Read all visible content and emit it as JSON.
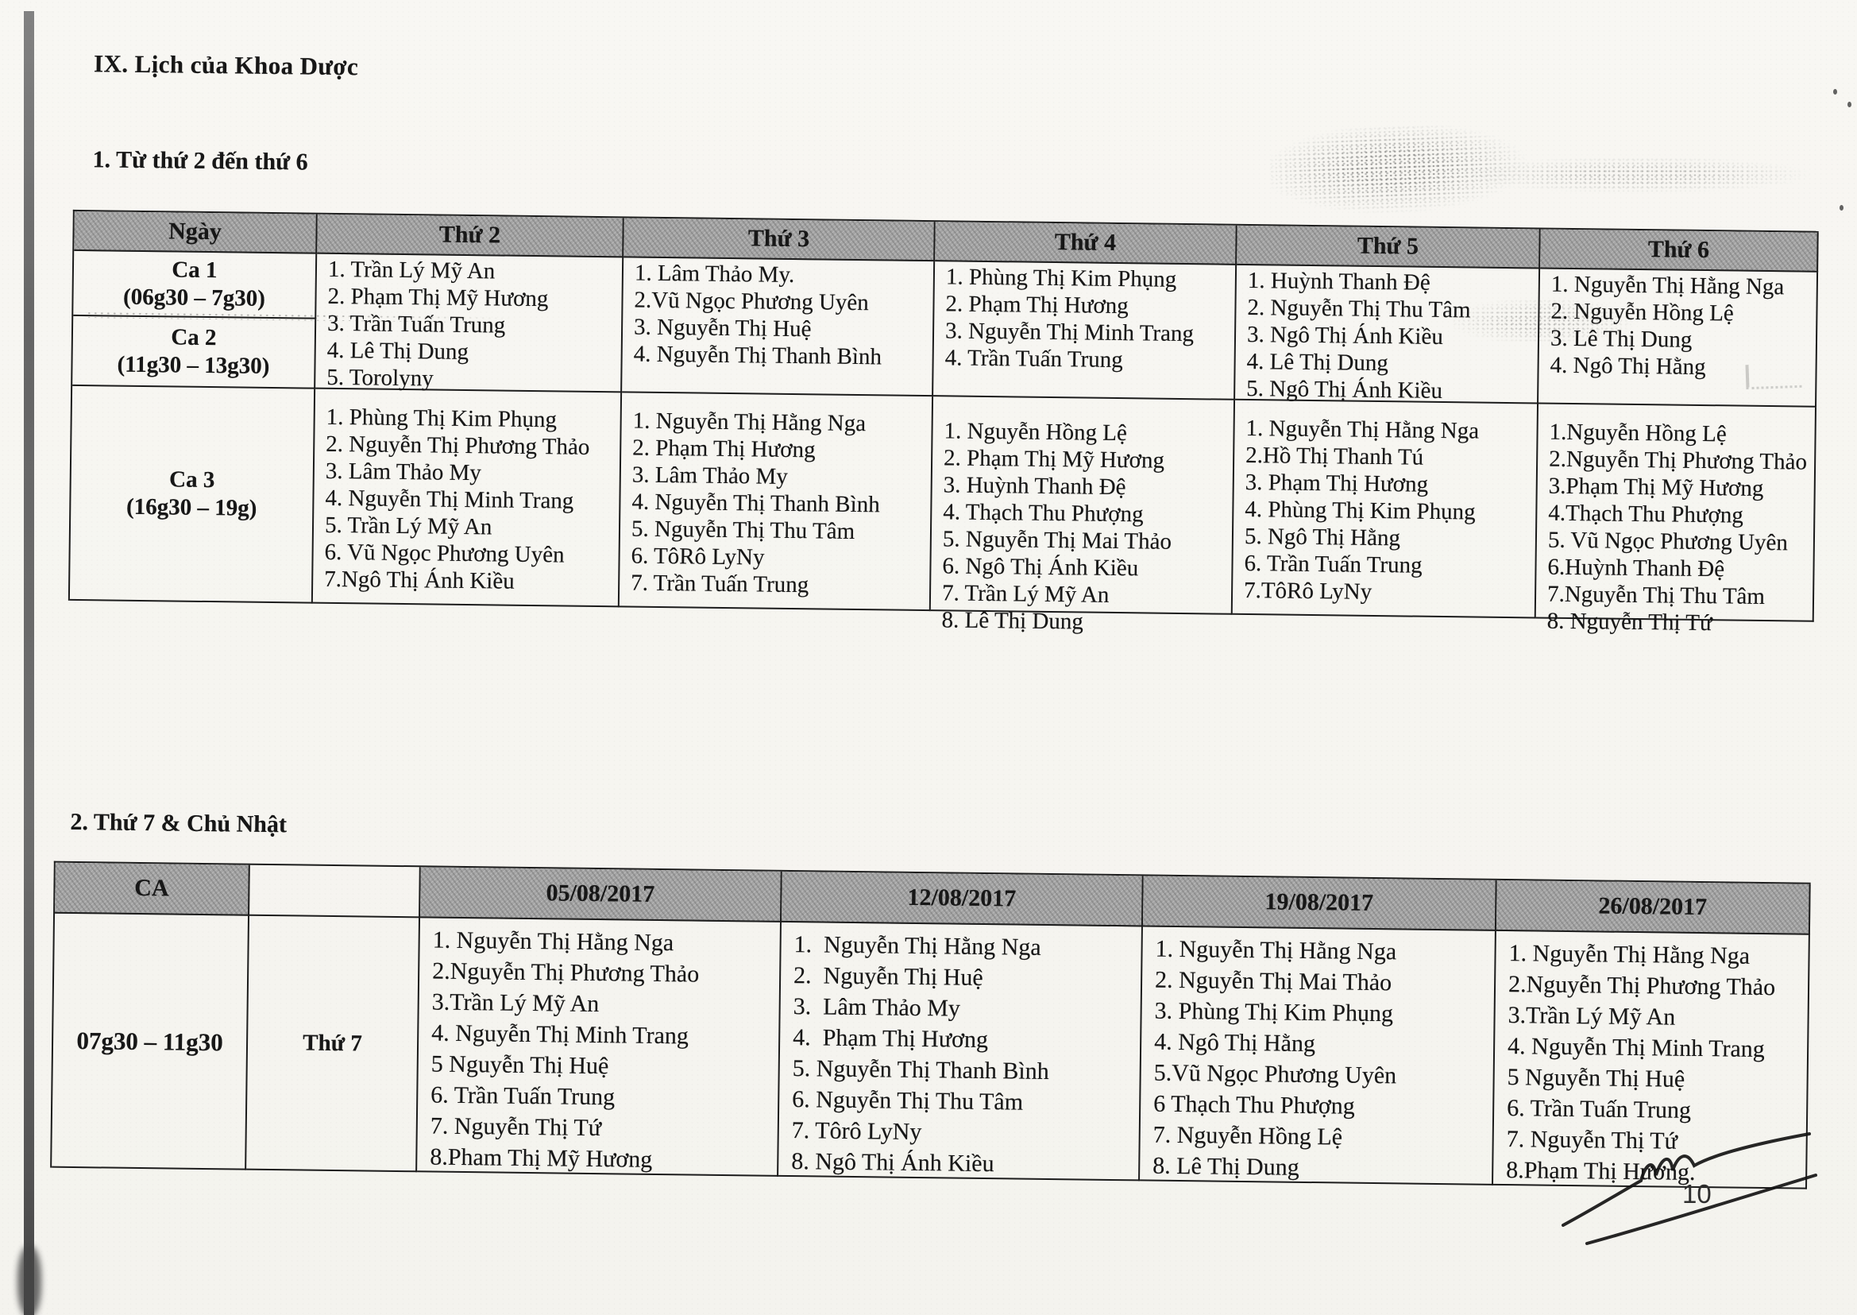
{
  "title": "IX. Lịch của Khoa Dược",
  "weekday": {
    "heading": "1. Từ thứ 2 đến thứ 6",
    "columns": [
      "Ngày",
      "Thứ 2",
      "Thứ 3",
      "Thứ 4",
      "Thứ 5",
      "Thứ 6"
    ],
    "ca1_label": "Ca 1",
    "ca1_time": "(06g30 – 7g30)",
    "ca2_label": "Ca 2",
    "ca2_time": "(11g30 – 13g30)",
    "ca3_label": "Ca 3",
    "ca3_time": "(16g30 – 19g)",
    "shift12": {
      "mon": [
        "1. Trần Lý Mỹ An",
        "2. Phạm Thị Mỹ Hương",
        "3. Trần Tuấn Trung",
        "4. Lê Thị Dung",
        "5. Torolyny"
      ],
      "tue": [
        "1. Lâm Thảo My.",
        "2.Vũ Ngọc Phương Uyên",
        "3. Nguyễn Thị Huệ",
        "4. Nguyễn Thị Thanh Bình"
      ],
      "wed": [
        "1. Phùng Thị Kim Phụng",
        "2. Phạm Thị Hương",
        "3. Nguyễn Thị Minh Trang",
        "4. Trần Tuấn Trung"
      ],
      "thu": [
        "1. Huỳnh Thanh Đệ",
        "2. Nguyễn Thị Thu Tâm",
        "3. Ngô Thị Ánh Kiều",
        "4. Lê Thị Dung",
        "5. Ngô Thị Ánh Kiều"
      ],
      "fri": [
        "1. Nguyễn Thị Hằng Nga",
        "2. Nguyễn Hồng Lệ",
        "3. Lê Thị Dung",
        "4. Ngô Thị Hằng"
      ]
    },
    "shift3": {
      "mon": [
        "1. Phùng Thị Kim Phụng",
        "2. Nguyễn Thị Phương Thảo",
        "3. Lâm Thảo My",
        "4. Nguyễn Thị Minh Trang",
        "5. Trần Lý Mỹ An",
        "6. Vũ Ngọc Phương Uyên",
        "7.Ngô Thị Ánh Kiều"
      ],
      "tue": [
        "1. Nguyễn Thị Hằng Nga",
        "2. Phạm Thị Hương",
        "3. Lâm Thảo My",
        "4. Nguyễn Thị Thanh Bình",
        "5. Nguyễn Thị Thu Tâm",
        "6. TôRô LyNy",
        "7. Trần Tuấn Trung"
      ],
      "wed": [
        "1. Nguyễn Hồng Lệ",
        "2. Phạm Thị Mỹ Hương",
        "3. Huỳnh Thanh Đệ",
        "4. Thạch Thu Phượng",
        "5. Nguyễn Thị Mai Thảo",
        "6. Ngô Thị Ánh Kiều",
        "7. Trần Lý Mỹ An",
        "8. Lê Thị Dung"
      ],
      "thu": [
        "1. Nguyễn Thị Hằng Nga",
        "2.Hồ Thị Thanh Tú",
        "3. Phạm Thị Hương",
        "4. Phùng Thị Kim Phụng",
        "5. Ngô Thị Hằng",
        "6. Trần Tuấn Trung",
        "7.TôRô LyNy"
      ],
      "fri": [
        "1.Nguyễn Hồng Lệ",
        "2.Nguyễn Thị Phương Thảo",
        "3.Phạm Thị Mỹ Hương",
        "4.Thạch Thu Phượng",
        "5. Vũ Ngọc Phương Uyên",
        "6.Huỳnh Thanh Đệ",
        "7.Nguyễn Thị Thu Tâm",
        "8. Nguyễn Thị Tứ"
      ]
    }
  },
  "weekend": {
    "heading": "2. Thứ 7 & Chủ Nhật",
    "ca_label": "CA",
    "dates": [
      "05/08/2017",
      "12/08/2017",
      "19/08/2017",
      "26/08/2017"
    ],
    "time": "07g30 – 11g30",
    "day_label": "Thứ 7",
    "lists": [
      [
        "1. Nguyễn Thị Hằng Nga",
        "2.Nguyễn Thị Phương Thảo",
        "3.Trần Lý Mỹ An",
        "4. Nguyễn Thị Minh Trang",
        "5 Nguyễn Thị Huệ",
        "6. Trần Tuấn Trung",
        "7. Nguyễn Thị Tứ",
        "8.Pham Thị Mỹ Hương"
      ],
      [
        "1.  Nguyễn Thị Hằng Nga",
        "2.  Nguyễn Thị Huệ",
        "3.  Lâm Thảo My",
        "4.  Phạm Thị Hương",
        "5. Nguyễn Thị Thanh Bình",
        "6. Nguyễn Thị Thu Tâm",
        "7. Tôrô LyNy",
        "8. Ngô Thị Ánh Kiều"
      ],
      [
        "1. Nguyễn Thị Hằng Nga",
        "2. Nguyễn Thị Mai Thảo",
        "3. Phùng Thị Kim Phụng",
        "4. Ngô Thị Hằng",
        "5.Vũ Ngọc Phương Uyên",
        "6 Thạch Thu Phượng",
        "7. Nguyễn Hồng Lệ",
        "8. Lê Thị Dung"
      ],
      [
        "1. Nguyễn Thị Hằng Nga",
        "2.Nguyễn Thị Phương Thảo",
        "3.Trần Lý Mỹ An",
        "4. Nguyễn Thị Minh Trang",
        "5 Nguyễn Thị Huệ",
        "6. Trần Tuấn Trung",
        "7. Nguyễn Thị Tứ",
        "8.Phạm Thị Hương."
      ]
    ]
  },
  "footer": {
    "page_number": "10"
  }
}
